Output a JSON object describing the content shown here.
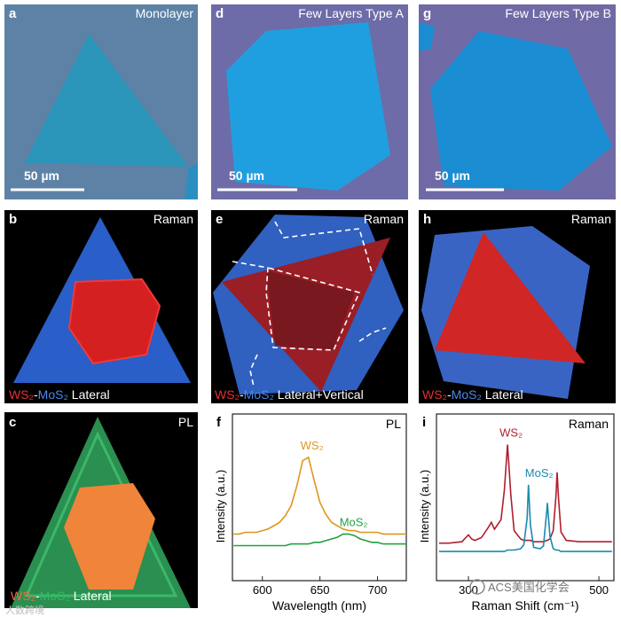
{
  "images": {
    "a": {
      "label": "a",
      "title": "Monolayer",
      "scale_bar": "50 µm"
    },
    "d": {
      "label": "d",
      "title": "Few Layers Type A",
      "scale_bar": "50 µm"
    },
    "g": {
      "label": "g",
      "title": "Few Layers Type B",
      "scale_bar": "50 µm"
    },
    "b": {
      "label": "b",
      "title": "Raman",
      "caption": [
        {
          "text": "WS₂",
          "color": "#e83030"
        },
        {
          "text": "-",
          "color": "#ffffff"
        },
        {
          "text": "MoS₂",
          "color": "#4a8ae8"
        },
        {
          "text": " Lateral",
          "color": "#ffffff"
        }
      ]
    },
    "e": {
      "label": "e",
      "title": "Raman",
      "caption": [
        {
          "text": "WS₂",
          "color": "#e83030"
        },
        {
          "text": "-",
          "color": "#ffffff"
        },
        {
          "text": "MoS₂",
          "color": "#4a8ae8"
        },
        {
          "text": " Lateral+Vertical",
          "color": "#ffffff"
        }
      ]
    },
    "h": {
      "label": "h",
      "title": "Raman",
      "caption": [
        {
          "text": "WS₂",
          "color": "#e83030"
        },
        {
          "text": "-",
          "color": "#ffffff"
        },
        {
          "text": "MoS₂",
          "color": "#4a8ae8"
        },
        {
          "text": " Lateral",
          "color": "#ffffff"
        }
      ]
    },
    "c": {
      "label": "c",
      "title": "PL",
      "caption": [
        {
          "text": "WS₂",
          "color": "#f06a40"
        },
        {
          "text": "-",
          "color": "#ffffff"
        },
        {
          "text": "MoS₂",
          "color": "#34b864"
        },
        {
          "text": " Lateral",
          "color": "#ffffff"
        }
      ]
    }
  },
  "chart_data": [
    {
      "type": "line",
      "panel_label": "f",
      "corner_label": "PL",
      "x_label": "Wavelength (nm)",
      "y_label": "Intensity (a.u.)",
      "xlim": [
        574,
        725
      ],
      "xticks": [
        600,
        650,
        700
      ],
      "ylim": [
        0,
        1
      ],
      "x": [
        575,
        580,
        585,
        590,
        595,
        600,
        605,
        610,
        615,
        620,
        625,
        630,
        635,
        640,
        645,
        650,
        655,
        660,
        665,
        670,
        675,
        680,
        685,
        690,
        695,
        700,
        705,
        710,
        715,
        720,
        725
      ],
      "series": [
        {
          "name": "WS₂",
          "color": "#e0961e",
          "values": [
            0.28,
            0.28,
            0.29,
            0.29,
            0.29,
            0.3,
            0.31,
            0.33,
            0.35,
            0.39,
            0.45,
            0.57,
            0.72,
            0.74,
            0.6,
            0.47,
            0.4,
            0.35,
            0.33,
            0.31,
            0.3,
            0.3,
            0.29,
            0.29,
            0.29,
            0.29,
            0.28,
            0.28,
            0.28,
            0.28,
            0.28
          ]
        },
        {
          "name": "MoS₂",
          "color": "#22a040",
          "values": [
            0.21,
            0.21,
            0.21,
            0.21,
            0.21,
            0.21,
            0.21,
            0.21,
            0.21,
            0.21,
            0.22,
            0.22,
            0.22,
            0.22,
            0.23,
            0.23,
            0.24,
            0.25,
            0.26,
            0.28,
            0.28,
            0.27,
            0.25,
            0.24,
            0.23,
            0.23,
            0.22,
            0.22,
            0.22,
            0.22,
            0.22
          ]
        }
      ]
    },
    {
      "type": "line",
      "panel_label": "i",
      "corner_label": "Raman",
      "x_label": "Raman Shift (cm⁻¹)",
      "y_label": "Intensity (a.u.)",
      "xlim": [
        251,
        523
      ],
      "xticks": [
        300,
        500
      ],
      "ylim": [
        -0.2,
        1
      ],
      "x": [
        255,
        260,
        270,
        290,
        300,
        305,
        310,
        320,
        330,
        335,
        340,
        350,
        355,
        360,
        365,
        370,
        380,
        385,
        390,
        392,
        395,
        400,
        410,
        415,
        420,
        421,
        425,
        430,
        434,
        436,
        438,
        442,
        450,
        470,
        490,
        520
      ],
      "series": [
        {
          "name": "WS₂",
          "color": "#b01e2e",
          "values": [
            0.07,
            0.07,
            0.07,
            0.08,
            0.13,
            0.1,
            0.09,
            0.11,
            0.18,
            0.22,
            0.17,
            0.24,
            0.45,
            0.78,
            0.42,
            0.16,
            0.1,
            0.09,
            0.09,
            0.09,
            0.09,
            0.08,
            0.08,
            0.08,
            0.09,
            0.09,
            0.1,
            0.16,
            0.4,
            0.58,
            0.4,
            0.15,
            0.09,
            0.08,
            0.08,
            0.08
          ]
        },
        {
          "name": "MoS₂",
          "color": "#1a8ab0",
          "values": [
            0.01,
            0.01,
            0.01,
            0.01,
            0.01,
            0.01,
            0.01,
            0.01,
            0.01,
            0.01,
            0.01,
            0.01,
            0.01,
            0.02,
            0.02,
            0.02,
            0.03,
            0.06,
            0.25,
            0.49,
            0.2,
            0.04,
            0.03,
            0.05,
            0.3,
            0.36,
            0.12,
            0.03,
            0.02,
            0.02,
            0.02,
            0.01,
            0.01,
            0.01,
            0.01,
            0.01
          ]
        }
      ]
    }
  ],
  "watermark": "ACS美国化学会",
  "corner_mark": "人数跨境"
}
